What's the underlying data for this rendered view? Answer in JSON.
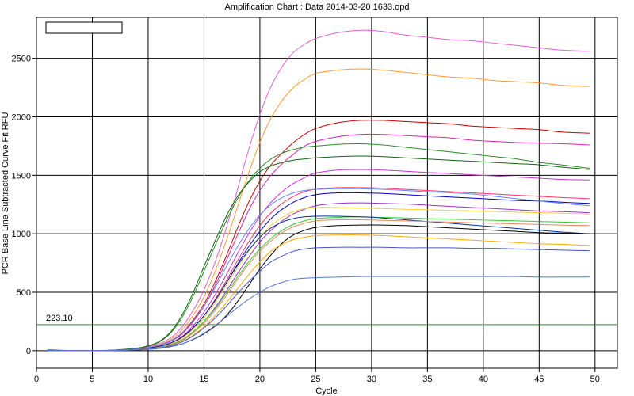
{
  "chart_data": {
    "type": "line",
    "title": "Amplification Chart : Data 2014-03-20 1633.opd",
    "xlabel": "Cycle",
    "ylabel": "PCR Base Line Subtracted Curve Fit RFU",
    "xlim": [
      0,
      52
    ],
    "ylim": [
      -150,
      2850
    ],
    "x_ticks": [
      0,
      5,
      10,
      15,
      20,
      25,
      30,
      35,
      40,
      45,
      50
    ],
    "y_ticks": [
      0,
      500,
      1000,
      1500,
      2000,
      2500
    ],
    "grid": true,
    "threshold": {
      "value": 223.1,
      "label": "223.10",
      "color": "#2e8b2e"
    },
    "legend": {
      "placement": "top-left",
      "entries": []
    },
    "x": [
      1,
      3,
      5,
      7,
      9,
      10,
      11,
      12,
      13,
      14,
      15,
      16,
      17,
      18,
      19,
      20,
      21,
      22,
      23,
      24,
      25,
      27,
      29,
      31,
      33,
      35,
      37,
      39,
      41,
      43,
      45,
      47,
      49.5
    ],
    "series": [
      {
        "color": "#e060d0",
        "values": [
          10,
          2,
          0,
          5,
          18,
          35,
          60,
          110,
          200,
          340,
          520,
          760,
          1050,
          1380,
          1720,
          2020,
          2260,
          2430,
          2550,
          2620,
          2670,
          2720,
          2740,
          2730,
          2700,
          2680,
          2660,
          2650,
          2630,
          2610,
          2590,
          2570,
          2560
        ]
      },
      {
        "color": "#ff9933",
        "values": [
          8,
          2,
          0,
          4,
          15,
          30,
          52,
          95,
          175,
          300,
          460,
          680,
          940,
          1230,
          1520,
          1780,
          1990,
          2140,
          2250,
          2320,
          2370,
          2400,
          2410,
          2400,
          2380,
          2360,
          2340,
          2330,
          2310,
          2300,
          2290,
          2270,
          2260
        ]
      },
      {
        "color": "#cc0000",
        "values": [
          5,
          1,
          0,
          4,
          15,
          28,
          48,
          85,
          150,
          260,
          400,
          590,
          810,
          1050,
          1270,
          1450,
          1590,
          1690,
          1780,
          1850,
          1900,
          1950,
          1970,
          1970,
          1960,
          1950,
          1940,
          1920,
          1910,
          1900,
          1890,
          1870,
          1860
        ]
      },
      {
        "color": "#dd22aa",
        "values": [
          5,
          1,
          0,
          4,
          14,
          26,
          45,
          80,
          140,
          245,
          380,
          560,
          770,
          990,
          1200,
          1370,
          1500,
          1600,
          1680,
          1750,
          1790,
          1830,
          1850,
          1850,
          1840,
          1830,
          1820,
          1800,
          1790,
          1780,
          1775,
          1770,
          1760
        ]
      },
      {
        "color": "#2e8b2e",
        "values": [
          5,
          1,
          0,
          6,
          22,
          40,
          75,
          150,
          280,
          460,
          680,
          900,
          1110,
          1300,
          1450,
          1560,
          1640,
          1690,
          1720,
          1740,
          1750,
          1765,
          1770,
          1760,
          1740,
          1720,
          1700,
          1680,
          1660,
          1640,
          1610,
          1590,
          1560
        ]
      },
      {
        "color": "#116611",
        "values": [
          4,
          1,
          0,
          6,
          22,
          42,
          80,
          160,
          300,
          490,
          720,
          940,
          1150,
          1320,
          1440,
          1530,
          1580,
          1610,
          1630,
          1640,
          1650,
          1660,
          1665,
          1660,
          1650,
          1640,
          1630,
          1620,
          1610,
          1600,
          1590,
          1570,
          1550
        ]
      },
      {
        "color": "#cc33cc",
        "values": [
          4,
          1,
          0,
          3,
          12,
          22,
          38,
          68,
          120,
          210,
          330,
          480,
          650,
          830,
          1000,
          1150,
          1270,
          1360,
          1430,
          1480,
          1520,
          1545,
          1550,
          1545,
          1535,
          1525,
          1515,
          1505,
          1495,
          1485,
          1475,
          1465,
          1460
        ]
      },
      {
        "color": "#ff3366",
        "values": [
          3,
          1,
          0,
          3,
          12,
          20,
          35,
          60,
          110,
          190,
          300,
          440,
          600,
          770,
          930,
          1070,
          1180,
          1260,
          1320,
          1360,
          1380,
          1395,
          1395,
          1390,
          1380,
          1370,
          1360,
          1350,
          1340,
          1330,
          1320,
          1310,
          1300
        ]
      },
      {
        "color": "#0000cc",
        "values": [
          3,
          1,
          0,
          3,
          12,
          22,
          38,
          65,
          115,
          195,
          300,
          430,
          580,
          740,
          890,
          1020,
          1130,
          1210,
          1270,
          1310,
          1335,
          1350,
          1350,
          1345,
          1335,
          1325,
          1315,
          1305,
          1295,
          1285,
          1280,
          1270,
          1260
        ]
      },
      {
        "color": "#6688ff",
        "values": [
          3,
          1,
          0,
          4,
          16,
          28,
          48,
          85,
          150,
          250,
          380,
          540,
          720,
          890,
          1040,
          1160,
          1250,
          1310,
          1350,
          1370,
          1380,
          1385,
          1385,
          1380,
          1370,
          1360,
          1350,
          1340,
          1320,
          1300,
          1280,
          1260,
          1240
        ]
      },
      {
        "color": "#9933cc",
        "values": [
          3,
          1,
          0,
          3,
          10,
          18,
          30,
          52,
          92,
          160,
          250,
          370,
          510,
          660,
          800,
          930,
          1030,
          1110,
          1170,
          1210,
          1240,
          1260,
          1265,
          1260,
          1255,
          1245,
          1235,
          1225,
          1215,
          1205,
          1195,
          1190,
          1180
        ]
      },
      {
        "color": "#ffcc33",
        "values": [
          3,
          1,
          0,
          3,
          11,
          20,
          34,
          60,
          105,
          180,
          280,
          410,
          560,
          710,
          850,
          970,
          1070,
          1140,
          1190,
          1215,
          1225,
          1225,
          1220,
          1215,
          1210,
          1205,
          1200,
          1195,
          1190,
          1185,
          1180,
          1175,
          1170
        ]
      },
      {
        "color": "#33cc33",
        "values": [
          3,
          1,
          0,
          3,
          10,
          18,
          30,
          52,
          92,
          160,
          250,
          360,
          490,
          630,
          760,
          870,
          960,
          1030,
          1080,
          1110,
          1130,
          1140,
          1145,
          1140,
          1135,
          1130,
          1125,
          1120,
          1115,
          1110,
          1105,
          1100,
          1095
        ]
      },
      {
        "color": "#003399",
        "values": [
          3,
          1,
          0,
          3,
          12,
          22,
          38,
          66,
          115,
          195,
          300,
          430,
          580,
          730,
          860,
          970,
          1050,
          1100,
          1130,
          1145,
          1150,
          1150,
          1145,
          1135,
          1120,
          1105,
          1090,
          1075,
          1060,
          1045,
          1030,
          1015,
          1000
        ]
      },
      {
        "color": "#ee8855",
        "values": [
          3,
          1,
          0,
          2,
          10,
          17,
          28,
          48,
          85,
          150,
          235,
          345,
          470,
          610,
          740,
          850,
          940,
          1010,
          1060,
          1090,
          1110,
          1120,
          1120,
          1115,
          1110,
          1105,
          1100,
          1095,
          1090,
          1085,
          1080,
          1075,
          1070
        ]
      },
      {
        "color": "#000000",
        "values": [
          2,
          0,
          0,
          2,
          6,
          12,
          20,
          34,
          58,
          95,
          145,
          210,
          300,
          420,
          560,
          700,
          820,
          920,
          990,
          1030,
          1055,
          1070,
          1075,
          1075,
          1070,
          1060,
          1050,
          1040,
          1030,
          1020,
          1010,
          1005,
          1000
        ]
      },
      {
        "color": "#ffaa00",
        "values": [
          2,
          0,
          0,
          2,
          8,
          14,
          24,
          42,
          75,
          130,
          205,
          300,
          410,
          530,
          650,
          760,
          850,
          910,
          950,
          970,
          985,
          990,
          990,
          985,
          975,
          965,
          955,
          945,
          935,
          925,
          915,
          910,
          900
        ]
      },
      {
        "color": "#4455cc",
        "values": [
          2,
          0,
          0,
          2,
          8,
          14,
          24,
          42,
          73,
          125,
          195,
          280,
          380,
          490,
          590,
          680,
          760,
          810,
          850,
          870,
          880,
          885,
          885,
          885,
          880,
          880,
          880,
          875,
          875,
          870,
          865,
          860,
          855
        ]
      },
      {
        "color": "#5577dd",
        "values": [
          2,
          0,
          0,
          2,
          7,
          12,
          20,
          34,
          58,
          98,
          150,
          215,
          290,
          370,
          440,
          500,
          550,
          585,
          610,
          620,
          625,
          630,
          635,
          635,
          635,
          635,
          635,
          635,
          635,
          635,
          630,
          630,
          630
        ]
      }
    ]
  }
}
